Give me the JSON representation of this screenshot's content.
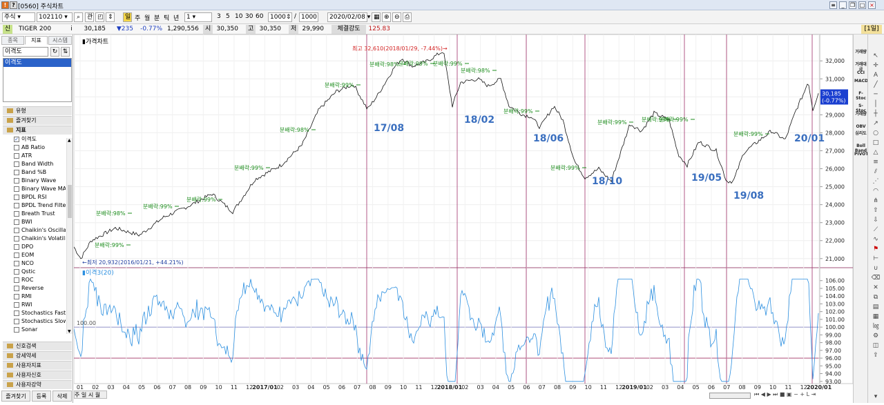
{
  "window": {
    "title": "[0560] 주식차트",
    "icons": [
      "settings-icon",
      "minimize-icon",
      "restore-icon",
      "maximize-icon",
      "close-icon"
    ]
  },
  "toolbar": {
    "market": "주식",
    "code": "102110",
    "periods": [
      "주",
      "월",
      "분",
      "틱",
      "년"
    ],
    "count_options": [
      "1",
      "3",
      "5",
      "10",
      "30",
      "60"
    ],
    "count_value": "1",
    "bars_value": "1000",
    "bars_total": "1000",
    "date": "2020/02/08"
  },
  "quote": {
    "name": "TIGER 200",
    "tag": "신",
    "info": "i",
    "price": "30,185",
    "change": "▼235",
    "change_pct": "-0.77%",
    "volume": "1,290,556",
    "open_label": "시",
    "open": "30,350",
    "high_label": "고",
    "high": "30,350",
    "low_label": "저",
    "low": "29,990",
    "strength_label": "체결강도",
    "strength": "125.83",
    "period": "[1일]"
  },
  "left": {
    "tabs": [
      "종목",
      "지표",
      "시스템"
    ],
    "search_value": "이격도",
    "selected": "이격도",
    "groups_top": [
      "유형",
      "즐겨찾기",
      "지표"
    ],
    "indicators": [
      {
        "name": "이격도",
        "checked": true
      },
      {
        "name": "AB Ratio"
      },
      {
        "name": "ATR"
      },
      {
        "name": "Band Width"
      },
      {
        "name": "Band %B"
      },
      {
        "name": "Binary Wave"
      },
      {
        "name": "Binary Wave MACD"
      },
      {
        "name": "BPDL RSI"
      },
      {
        "name": "BPDL Trend Filter"
      },
      {
        "name": "Breath Trust"
      },
      {
        "name": "BWI"
      },
      {
        "name": "Chaikin's Oscillator"
      },
      {
        "name": "Chaikin's Volatility"
      },
      {
        "name": "DPO"
      },
      {
        "name": "EOM"
      },
      {
        "name": "NCO"
      },
      {
        "name": "Qstic"
      },
      {
        "name": "ROC"
      },
      {
        "name": "Reverse"
      },
      {
        "name": "RMI"
      },
      {
        "name": "RWI"
      },
      {
        "name": "Stochastics Fast"
      },
      {
        "name": "Stochastics Slow"
      },
      {
        "name": "Sonar"
      }
    ],
    "groups_bottom": [
      "신호검색",
      "강세약세",
      "사용자지표",
      "사용자신호",
      "사용자강약"
    ],
    "bottom_buttons": [
      "즐겨찾기",
      "등록",
      "삭제"
    ]
  },
  "chart": {
    "price_title": "가격차트",
    "osc_title": "이격3(20)",
    "osc_ref_label": "100.00",
    "high_label": "최고 32,610(2018/01/29, -7.44%)→",
    "low_label": "←최저 20,932(2016/01/21, +44.21%)",
    "current_tag": [
      "30,185",
      "(-0.77%)"
    ],
    "price_ticks": [
      "32,000",
      "31,000",
      "30,000",
      "29,000",
      "28,000",
      "27,000",
      "26,000",
      "25,000",
      "24,000",
      "23,000",
      "22,000",
      "21,000"
    ],
    "osc_ticks": [
      "106.00",
      "105.00",
      "104.00",
      "103.00",
      "102.00",
      "101.00",
      "100.00",
      "99.00",
      "98.00",
      "97.00",
      "96.00",
      "95.00",
      "94.00",
      "93.00"
    ],
    "x_ticks": [
      "01",
      "02",
      "03",
      "04",
      "05",
      "06",
      "07",
      "08",
      "09",
      "10",
      "11",
      "12",
      "2017/01",
      "02",
      "03",
      "04",
      "05",
      "06",
      "07",
      "08",
      "09",
      "10",
      "11",
      "12",
      "2018/01",
      "02",
      "03",
      "04",
      "05",
      "06",
      "07",
      "08",
      "09",
      "10",
      "11",
      "12",
      "2019/01",
      "02",
      "03",
      "04",
      "05",
      "06",
      "07",
      "08",
      "09",
      "10",
      "11",
      "12",
      "2020/01"
    ],
    "x_bold": [
      "2017/01",
      "2018/01",
      "2019/01",
      "2020/01"
    ],
    "dividend_label": "분배락:",
    "dividend_notes": [
      "99%",
      "98%",
      "99%",
      "99%",
      "99%",
      "98%",
      "99%",
      "98%",
      "99%",
      "99%",
      "98%",
      "99%",
      "99%",
      "99%",
      "98%",
      "99%",
      "99%"
    ],
    "events": [
      "17/08",
      "18/02",
      "18/06",
      "18/10",
      "19/05",
      "19/08",
      "20/01"
    ],
    "bottom_controls": [
      "주",
      "일",
      "시",
      "월"
    ]
  },
  "colors": {
    "event_line": "#a0306a",
    "event_text": "#3a6fbf",
    "dividend": "#1c8c1c",
    "osc_line": "#2b8fe0",
    "price_line": "#111111",
    "high_low": "#d21f1f",
    "low_text": "#1f3fa0"
  },
  "right": {
    "labels": [
      "거래량",
      "거래대금",
      "CCI",
      "MACD",
      "F-Stoc",
      "S-Stoc",
      "거래량",
      "OBV",
      "심리도",
      "Boll Band",
      "PIVOT"
    ]
  }
}
